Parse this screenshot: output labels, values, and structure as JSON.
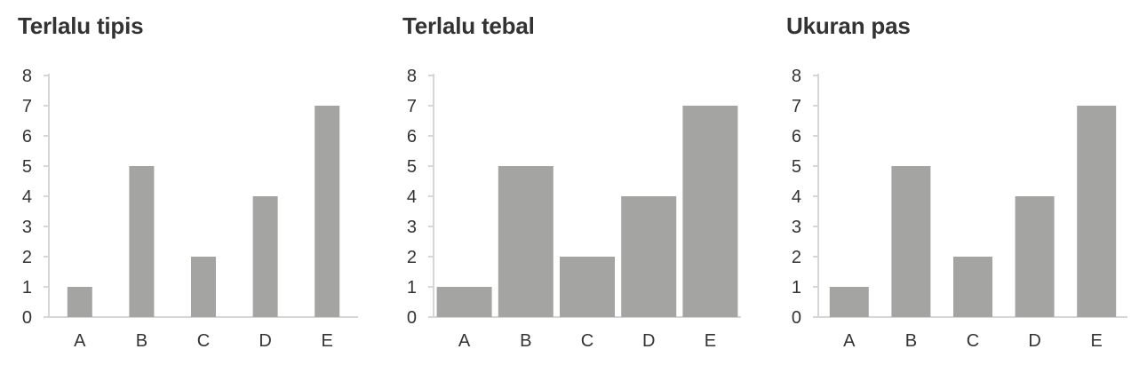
{
  "colors": {
    "bar": "#a4a5a2",
    "axis": "#d6d6d6",
    "text": "#333333",
    "title": "#333333"
  },
  "chart_data": [
    {
      "type": "bar",
      "title": "Terlalu tipis",
      "categories": [
        "A",
        "B",
        "C",
        "D",
        "E"
      ],
      "values": [
        1,
        5,
        2,
        4,
        7
      ],
      "yticks": [
        0,
        1,
        2,
        3,
        4,
        5,
        6,
        7,
        8
      ],
      "ylim": [
        0,
        8
      ],
      "xlabel": "",
      "ylabel": "",
      "grid": false,
      "bar_width": "thin"
    },
    {
      "type": "bar",
      "title": "Terlalu tebal",
      "categories": [
        "A",
        "B",
        "C",
        "D",
        "E"
      ],
      "values": [
        1,
        5,
        2,
        4,
        7
      ],
      "yticks": [
        0,
        1,
        2,
        3,
        4,
        5,
        6,
        7,
        8
      ],
      "ylim": [
        0,
        8
      ],
      "xlabel": "",
      "ylabel": "",
      "grid": false,
      "bar_width": "thick"
    },
    {
      "type": "bar",
      "title": "Ukuran pas",
      "categories": [
        "A",
        "B",
        "C",
        "D",
        "E"
      ],
      "values": [
        1,
        5,
        2,
        4,
        7
      ],
      "yticks": [
        0,
        1,
        2,
        3,
        4,
        5,
        6,
        7,
        8
      ],
      "ylim": [
        0,
        8
      ],
      "xlabel": "",
      "ylabel": "",
      "grid": false,
      "bar_width": "medium"
    }
  ]
}
